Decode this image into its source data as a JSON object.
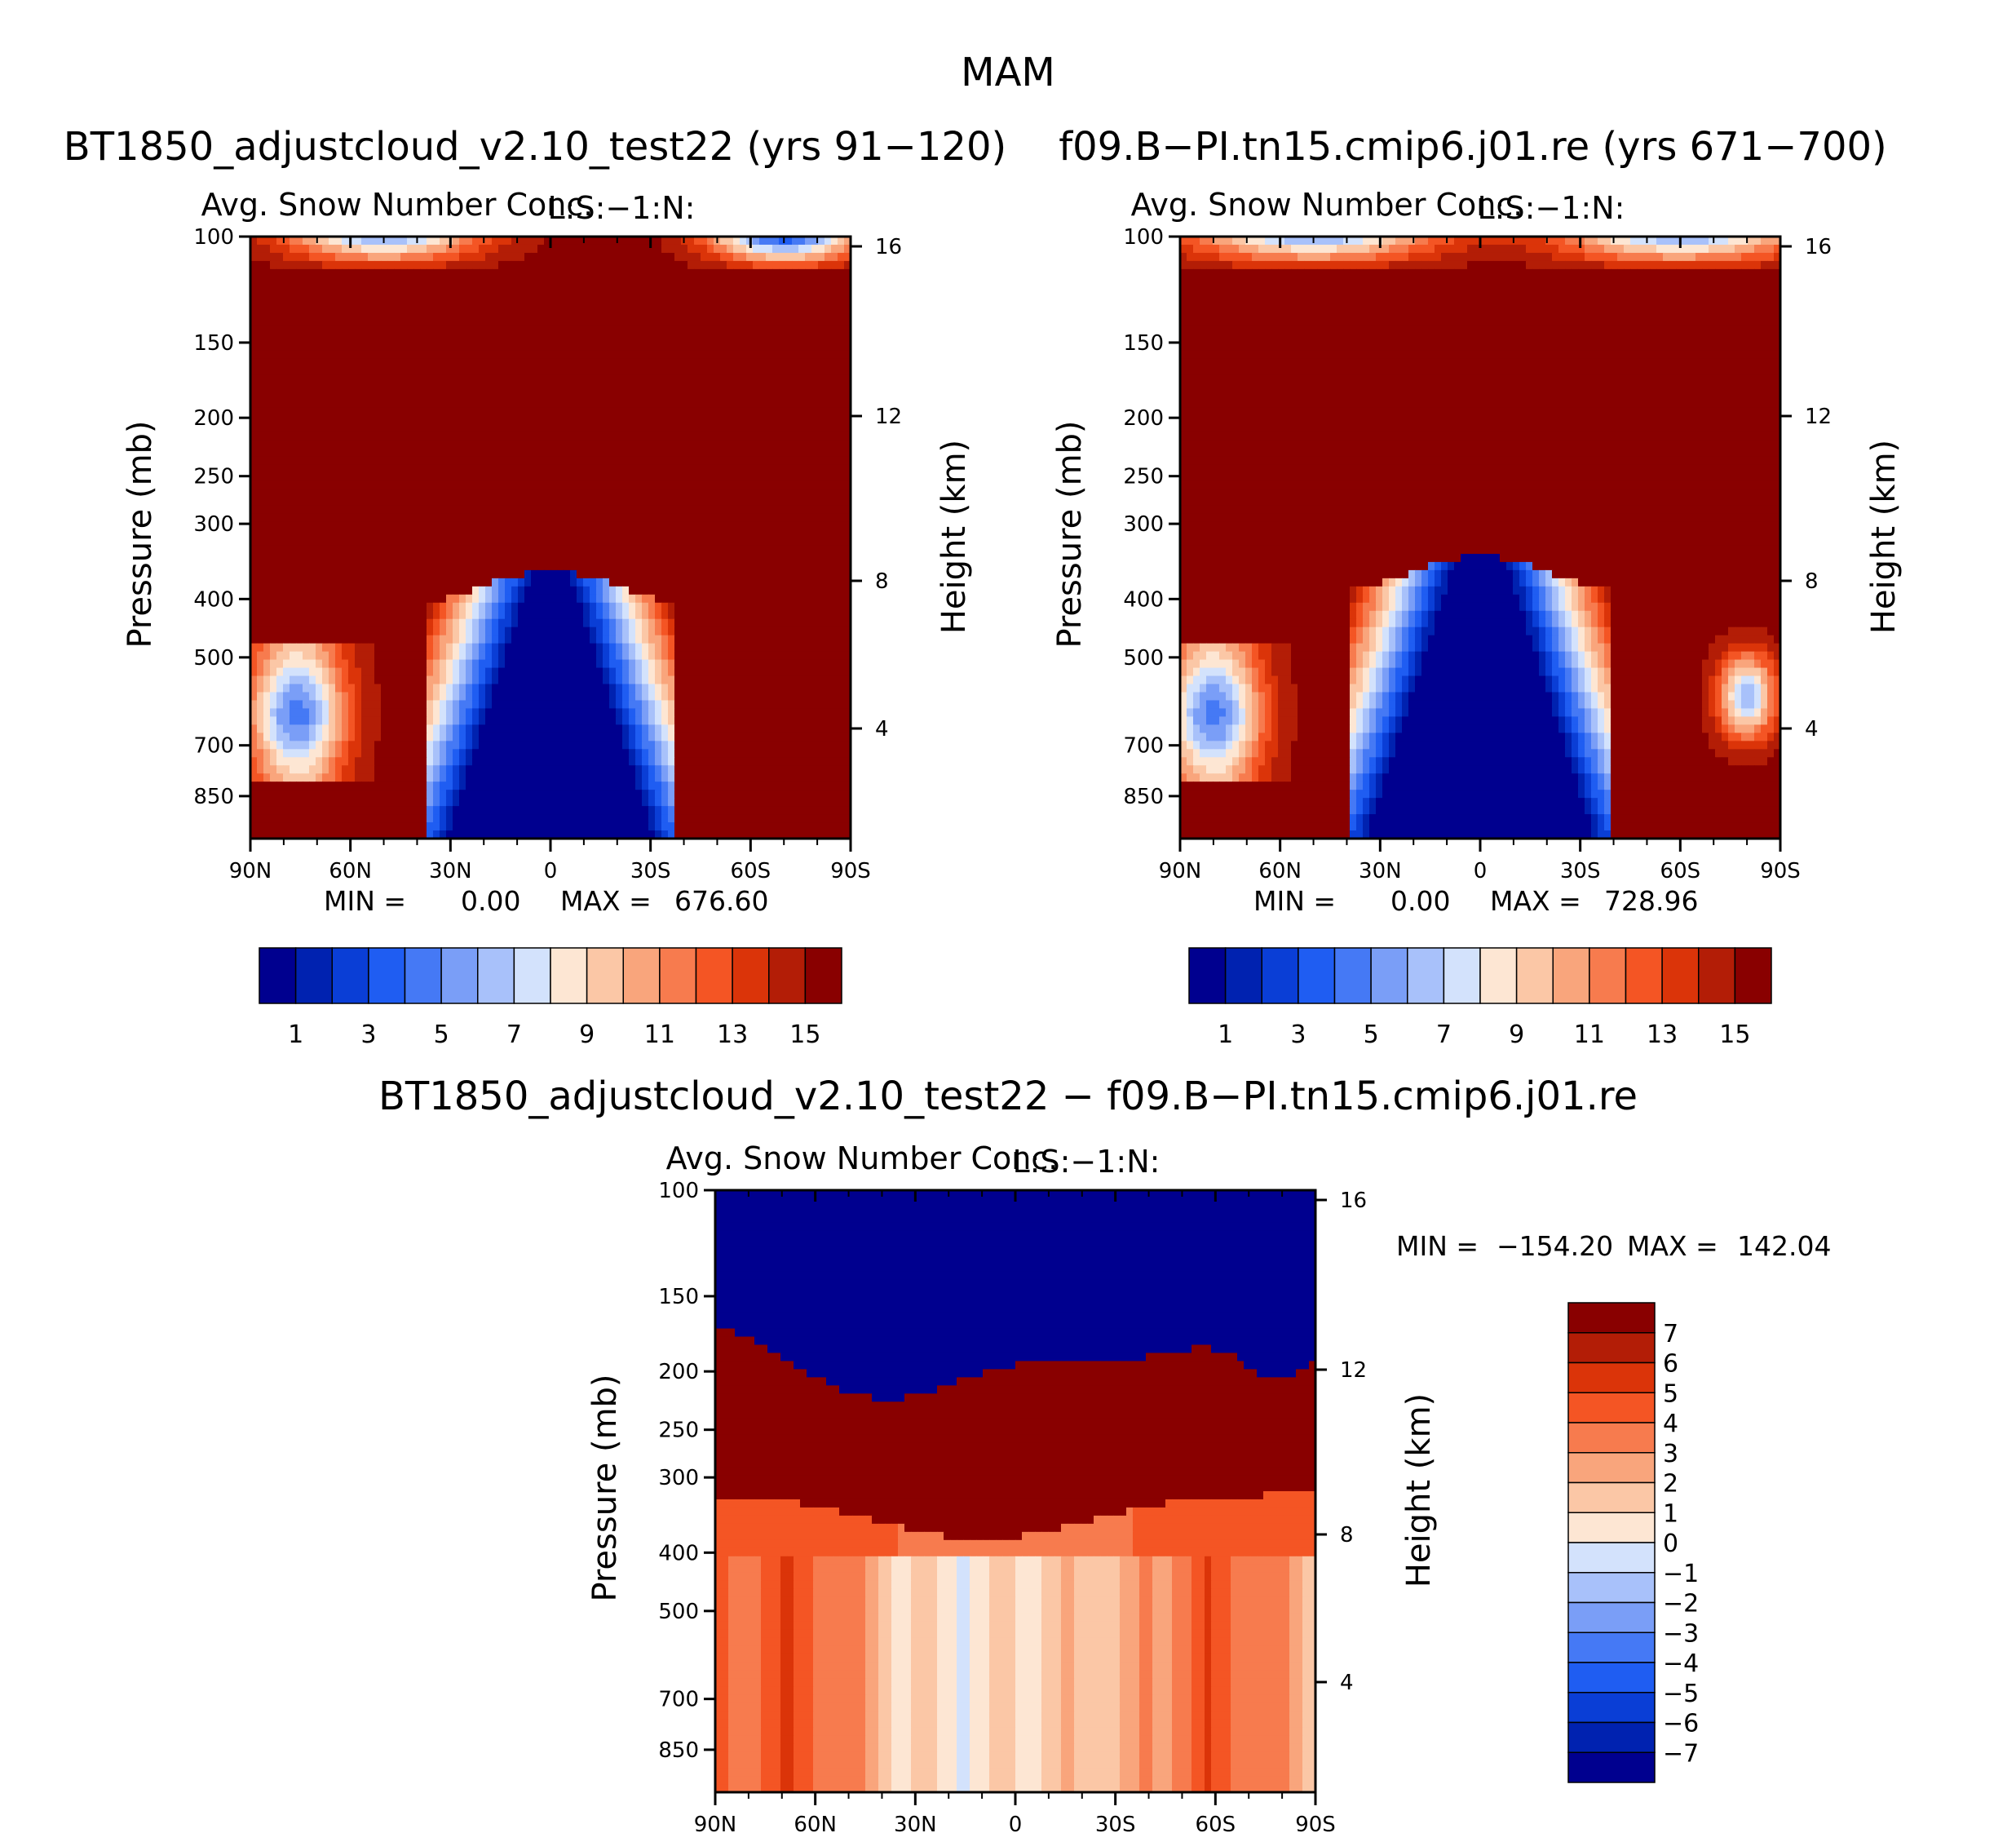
{
  "chart_data": {
    "type": "contour",
    "title": "MAM",
    "panels": [
      {
        "case_title": "BT1850_adjustcloud_v2.10_test22 (yrs 91−120)",
        "subtitle": "Avg. Snow Number Conc.",
        "units_label": "L:S:−1:N:",
        "stats": {
          "min_label": "MIN =",
          "min_value": "0.00",
          "max_label": "MAX =",
          "max_value": "676.60"
        },
        "colorbar": {
          "levels": [
            1,
            2,
            3,
            4,
            5,
            6,
            7,
            8,
            9,
            10,
            11,
            12,
            13,
            14,
            15
          ],
          "tick_labels": [
            "1",
            "3",
            "5",
            "7",
            "9",
            "11",
            "13",
            "15"
          ]
        },
        "fill_field": "snow_case1"
      },
      {
        "case_title": "f09.B−PI.tn15.cmip6.j01.re (yrs 671−700)",
        "subtitle": "Avg. Snow Number Conc.",
        "units_label": "L:S:−1:N:",
        "stats": {
          "min_label": "MIN =",
          "min_value": "0.00",
          "max_label": "MAX =",
          "max_value": "728.96"
        },
        "colorbar": {
          "levels": [
            1,
            2,
            3,
            4,
            5,
            6,
            7,
            8,
            9,
            10,
            11,
            12,
            13,
            14,
            15
          ],
          "tick_labels": [
            "1",
            "3",
            "5",
            "7",
            "9",
            "11",
            "13",
            "15"
          ]
        },
        "fill_field": "snow_case2"
      },
      {
        "case_title": "BT1850_adjustcloud_v2.10_test22 − f09.B−PI.tn15.cmip6.j01.re",
        "subtitle": "Avg. Snow Number Conc.",
        "units_label": "L:S:−1:N:",
        "stats": {
          "min_label": "MIN =",
          "min_value": "−154.20",
          "max_label": "MAX =",
          "max_value": "142.04"
        },
        "colorbar": {
          "levels": [
            -7,
            -6,
            -5,
            -4,
            -3,
            -2,
            -1,
            0,
            1,
            2,
            3,
            4,
            5,
            6,
            7
          ],
          "tick_labels": [
            "7",
            "6",
            "5",
            "4",
            "3",
            "2",
            "1",
            "0",
            "−1",
            "−2",
            "−3",
            "−4",
            "−5",
            "−6",
            "−7"
          ]
        },
        "fill_field": "difference"
      }
    ],
    "x_axis": {
      "tick_labels": [
        "90N",
        "60N",
        "30N",
        "0",
        "30S",
        "60S",
        "90S"
      ],
      "lat_values": [
        90,
        60,
        30,
        0,
        -30,
        -60,
        -90
      ]
    },
    "y_axis": {
      "label": "Pressure (mb)",
      "ticks": [
        100,
        150,
        200,
        250,
        300,
        400,
        500,
        700,
        850
      ],
      "tick_labels": [
        "100",
        "150",
        "200",
        "250",
        "300",
        "400",
        "500",
        "700",
        "850"
      ],
      "range": [
        100,
        1000
      ],
      "scale": "log"
    },
    "y2_axis": {
      "label": "Height (km)",
      "ticks": [
        16,
        12,
        8,
        4
      ],
      "tick_labels": [
        "16",
        "12",
        "8",
        "4"
      ]
    },
    "colors": {
      "sequential": [
        "#00008f",
        "#0022b0",
        "#0a3ed6",
        "#1f5df2",
        "#4579f5",
        "#7a9ef7",
        "#a8c1fa",
        "#d3e2fc",
        "#fde6d3",
        "#fbc7a6",
        "#f9a57c",
        "#f77b4e",
        "#f45524",
        "#db3409",
        "#b31d06",
        "#890000"
      ],
      "diverging": [
        "#00008f",
        "#0022b0",
        "#0a3ed6",
        "#1f5df2",
        "#4579f5",
        "#7a9ef7",
        "#a8c1fa",
        "#d3e2fc",
        "#fde6d3",
        "#fbc7a6",
        "#f9a57c",
        "#f77b4e",
        "#f45524",
        "#db3409",
        "#b31d06",
        "#890000"
      ]
    }
  }
}
